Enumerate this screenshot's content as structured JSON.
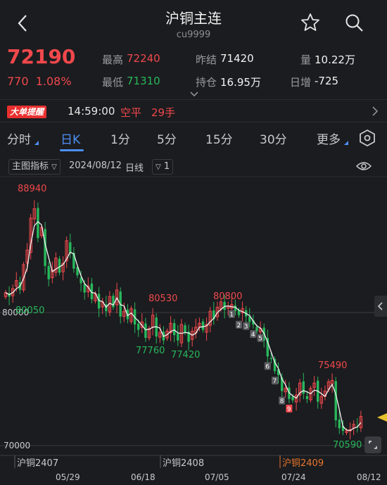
{
  "header": {
    "title": "沪铜主连",
    "subtitle": "cu9999"
  },
  "quote": {
    "price": "72190",
    "change": "770",
    "change_pct": "1.08%",
    "high_label": "最高",
    "high": "72240",
    "low_label": "最低",
    "low": "71310",
    "prev_settle_label": "昨结",
    "prev_settle": "71420",
    "open_interest_label": "持仓",
    "open_interest": "16.95万",
    "volume_label": "量",
    "volume": "10.22万",
    "daily_inc_label": "日增",
    "daily_inc": "-725"
  },
  "alert": {
    "badge": "大单提醒",
    "time": "14:59:00",
    "type": "空平",
    "volume": "29手"
  },
  "tabs": [
    "分时",
    "日K",
    "1分",
    "5分",
    "15分",
    "30分",
    "更多"
  ],
  "active_tab": "日K",
  "indicator": {
    "main_label": "主图指标",
    "date": "2024/08/12",
    "period": "日线",
    "ma_value": "1"
  },
  "colors": {
    "up": "#f0484c",
    "down": "#27b85c",
    "accent": "#4d8ff5",
    "background": "#1b1c1f"
  },
  "chart_data": {
    "type": "candlestick",
    "y_ticks": [
      "80000",
      "70000"
    ],
    "ylim": [
      69800,
      89800
    ],
    "x_labels": [
      "05/29",
      "06/18",
      "07/05",
      "07/24",
      "08/12"
    ],
    "contract_labels": [
      "沪铜2407",
      "沪铜2408",
      "沪铜2409"
    ],
    "annotations": {
      "high_88940": "88940",
      "low_80050": "80050",
      "high_80530": "80530",
      "low_77760": "77760",
      "low_77420": "77420",
      "high_80800": "80800",
      "high_75490": "75490",
      "low_70590": "70590"
    },
    "signals": [
      "1",
      "2",
      "3",
      "4",
      "5",
      "6",
      "7",
      "8",
      "9"
    ],
    "closes": [
      81500,
      81200,
      81800,
      82400,
      81700,
      83600,
      84700,
      87100,
      87800,
      85600,
      86400,
      83500,
      82500,
      83200,
      84100,
      83000,
      83700,
      85400,
      84500,
      83300,
      82800,
      82200,
      81500,
      82000,
      81000,
      81400,
      80300,
      80800,
      80100,
      81200,
      80400,
      81700,
      79700,
      80100,
      79500,
      80300,
      79100,
      78700,
      79300,
      78100,
      78800,
      79800,
      78200,
      78500,
      77900,
      78600,
      79200,
      78300,
      77900,
      79100,
      78500,
      77800,
      78600,
      78900,
      79200,
      78700,
      79100,
      80100,
      79500,
      80400,
      80800,
      80200,
      80500,
      80600,
      80100,
      79800,
      80300,
      79700,
      79300,
      79100,
      78600,
      78800,
      77900,
      76700,
      76500,
      75600,
      75300,
      74100,
      74300,
      73500,
      73400,
      73800,
      74700,
      73900,
      73500,
      74300,
      74700,
      73300,
      73700,
      74100,
      74800,
      74900,
      71900,
      71300,
      71100,
      71100,
      71200,
      71600,
      71400,
      72190
    ]
  }
}
